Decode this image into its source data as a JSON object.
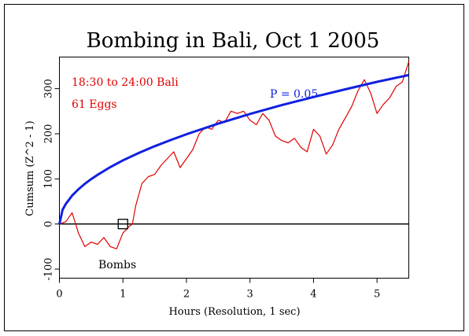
{
  "chart_data": {
    "type": "line",
    "title": "Bombing in Bali, Oct 1 2005",
    "xlabel": "Hours (Resolution, 1 sec)",
    "ylabel": "Cumsum (Z^2 - 1)",
    "xlim": [
      0,
      5.5
    ],
    "ylim": [
      -120,
      370
    ],
    "x_ticks": [
      0,
      1,
      2,
      3,
      4,
      5
    ],
    "y_ticks": [
      -100,
      0,
      100,
      200,
      300
    ],
    "grid": false,
    "annotations": {
      "time_range": "18:30 to 24:00 Bali",
      "eggs": "61 Eggs",
      "probability_label": "P = 0.05",
      "event_label": "Bombs"
    },
    "event_marker": {
      "x": 1.0,
      "y": 0
    },
    "series": [
      {
        "color": "#e00000",
        "x": [
          0,
          0.1,
          0.2,
          0.3,
          0.4,
          0.5,
          0.6,
          0.7,
          0.8,
          0.9,
          1.0,
          1.1,
          1.15,
          1.2,
          1.3,
          1.4,
          1.5,
          1.6,
          1.7,
          1.8,
          1.9,
          2.0,
          2.1,
          2.2,
          2.3,
          2.4,
          2.5,
          2.6,
          2.7,
          2.8,
          2.9,
          3.0,
          3.1,
          3.2,
          3.3,
          3.4,
          3.5,
          3.6,
          3.7,
          3.8,
          3.9,
          4.0,
          4.1,
          4.2,
          4.3,
          4.4,
          4.5,
          4.6,
          4.7,
          4.8,
          4.9,
          5.0,
          5.1,
          5.2,
          5.3,
          5.4,
          5.5
        ],
        "values": [
          0,
          5,
          25,
          -20,
          -50,
          -40,
          -45,
          -30,
          -50,
          -55,
          -20,
          -5,
          0,
          40,
          90,
          105,
          110,
          130,
          145,
          160,
          125,
          145,
          165,
          200,
          215,
          210,
          230,
          225,
          250,
          245,
          250,
          230,
          220,
          245,
          230,
          195,
          185,
          180,
          190,
          170,
          160,
          210,
          195,
          155,
          175,
          210,
          235,
          260,
          295,
          320,
          290,
          245,
          265,
          280,
          305,
          315,
          360
        ]
      },
      {
        "name": "P = 0.05",
        "color": "#1020e0",
        "x": [
          0.0,
          0.05,
          0.1,
          0.2,
          0.3,
          0.4,
          0.5,
          0.6,
          0.8,
          1.0,
          1.25,
          1.5,
          1.75,
          2.0,
          2.5,
          3.0,
          3.5,
          4.0,
          4.5,
          5.0,
          5.5
        ],
        "values": [
          0,
          31.5,
          44.5,
          63,
          77,
          89,
          99.5,
          109,
          126,
          141,
          157.5,
          172.5,
          186,
          199,
          222.5,
          244,
          263.5,
          281.5,
          298.5,
          315,
          330
        ]
      }
    ],
    "baseline": 0
  }
}
